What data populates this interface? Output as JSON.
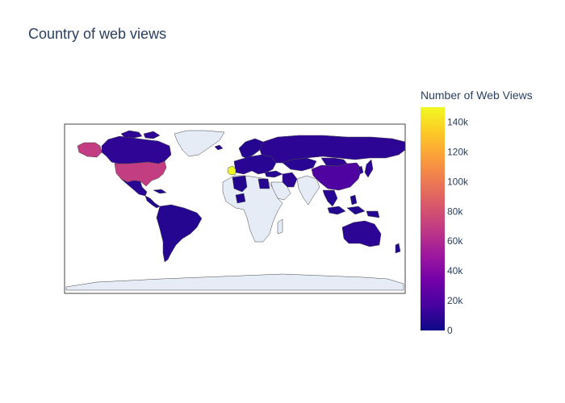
{
  "chart_data": {
    "type": "choropleth",
    "title": "Country of web views",
    "colorbar": {
      "title": "Number of Web Views",
      "range": [
        0,
        150000
      ],
      "ticks": [
        0,
        20000,
        40000,
        60000,
        80000,
        100000,
        120000,
        140000
      ],
      "tick_labels": [
        "0",
        "20k",
        "40k",
        "60k",
        "80k",
        "100k",
        "120k",
        "140k"
      ],
      "colorscale": [
        "#0d0887",
        "#46039f",
        "#7201a8",
        "#9c179e",
        "#bd3786",
        "#d8576b",
        "#ed7953",
        "#fb9f3a",
        "#fdca26",
        "#f0f921"
      ]
    },
    "no_data_color": "#e5ecf6",
    "regions": [
      {
        "name": "United Kingdom",
        "value": 150000
      },
      {
        "name": "United States",
        "value": 70000
      },
      {
        "name": "Alaska (United States)",
        "value": 70000
      },
      {
        "name": "Canada",
        "value": 10000
      },
      {
        "name": "Mexico",
        "value": 8000
      },
      {
        "name": "Central America",
        "value": 6000
      },
      {
        "name": "South America",
        "value": 7000
      },
      {
        "name": "Russia",
        "value": 9000
      },
      {
        "name": "Europe",
        "value": 8000
      },
      {
        "name": "Scandinavia",
        "value": 7000
      },
      {
        "name": "China",
        "value": 20000
      },
      {
        "name": "Mongolia",
        "value": 10000
      },
      {
        "name": "Kazakhstan",
        "value": 8000
      },
      {
        "name": "Iran",
        "value": 9000
      },
      {
        "name": "Turkey",
        "value": 8000
      },
      {
        "name": "Egypt",
        "value": 7000
      },
      {
        "name": "Algeria",
        "value": 6000
      },
      {
        "name": "Nigeria",
        "value": 6000
      },
      {
        "name": "Southeast Asia",
        "value": 8000
      },
      {
        "name": "Indonesia",
        "value": 7000
      },
      {
        "name": "Japan",
        "value": 9000
      },
      {
        "name": "Korea",
        "value": 8000
      },
      {
        "name": "Philippines",
        "value": 6000
      },
      {
        "name": "Australia",
        "value": 9000
      },
      {
        "name": "New Zealand",
        "value": 6000
      },
      {
        "name": "Greenland",
        "value": null
      },
      {
        "name": "Africa (other)",
        "value": null
      },
      {
        "name": "Saudi Arabia",
        "value": null
      },
      {
        "name": "India",
        "value": null
      },
      {
        "name": "Antarctica",
        "value": null
      },
      {
        "name": "Madagascar",
        "value": null
      }
    ]
  }
}
